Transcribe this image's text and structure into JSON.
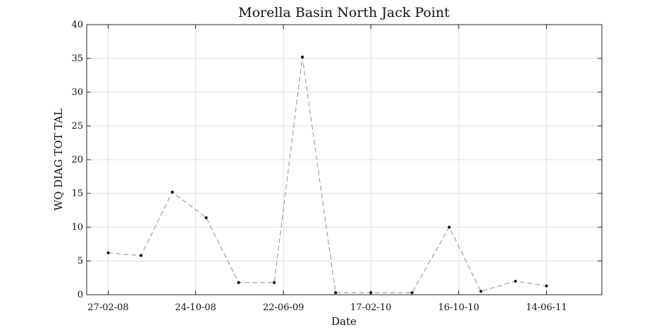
{
  "chart_data": {
    "type": "line",
    "title": "Morella Basin North Jack Point",
    "xlabel": "Date",
    "ylabel": "WQ DIAG TOT TAL",
    "ylim": [
      0,
      40
    ],
    "yticks": [
      0,
      5,
      10,
      15,
      20,
      25,
      30,
      35,
      40
    ],
    "xlim": [
      "2007-12-30",
      "2011-11-13"
    ],
    "xtick_dates": [
      "2008-02-27",
      "2008-10-24",
      "2009-06-22",
      "2010-02-17",
      "2010-10-16",
      "2011-06-14"
    ],
    "xtick_labels": [
      "27-02-08",
      "24-10-08",
      "22-06-09",
      "17-02-10",
      "16-10-10",
      "14-06-11"
    ],
    "grid": true,
    "line_style": "dashed",
    "line_color": "#999999",
    "marker_color": "#111111",
    "series": [
      {
        "x": [
          "2008-02-27",
          "2008-05-27",
          "2008-08-21",
          "2008-11-22",
          "2009-02-19",
          "2009-05-28",
          "2009-08-13",
          "2009-11-12",
          "2010-02-17",
          "2010-06-10",
          "2010-09-20",
          "2010-12-16",
          "2011-03-21",
          "2011-06-14"
        ],
        "y": [
          6.2,
          5.8,
          15.2,
          11.4,
          1.8,
          1.8,
          35.2,
          0.3,
          0.3,
          0.3,
          10.0,
          0.5,
          2.0,
          1.3
        ]
      }
    ]
  }
}
